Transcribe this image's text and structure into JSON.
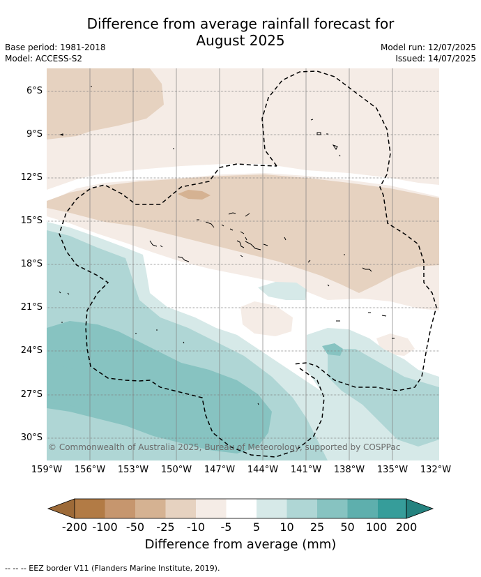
{
  "title_line1": "Difference from average rainfall forecast for",
  "title_line2": "August 2025",
  "base_period": "Base period: 1981-2018",
  "model": "Model: ACCESS-S2",
  "model_run": "Model run: 12/07/2025",
  "issued": "Issued: 14/07/2025",
  "copyright": "© Commonwealth of Australia 2025, Bureau of Meteorology, supported by COSPPac",
  "lat_labels": [
    "6°S",
    "9°S",
    "12°S",
    "15°S",
    "18°S",
    "21°S",
    "24°S",
    "27°S",
    "30°S"
  ],
  "lon_labels": [
    "159°W",
    "156°W",
    "153°W",
    "150°W",
    "147°W",
    "144°W",
    "141°W",
    "138°W",
    "135°W",
    "132°W"
  ],
  "colorbar": {
    "ticks": [
      "-200",
      "-100",
      "-50",
      "-25",
      "-10",
      "-5",
      "5",
      "10",
      "25",
      "50",
      "100",
      "200"
    ],
    "colors": [
      "#9d6a38",
      "#b27b45",
      "#c6966e",
      "#d5b292",
      "#e6d2c0",
      "#f5ece6",
      "#ffffff",
      "#d6e9e8",
      "#afd6d5",
      "#87c3c1",
      "#5eafad",
      "#369d9a",
      "#24827f"
    ],
    "title": "Difference from average (mm)"
  },
  "legend_footer": "--  --  -- EEZ border V11 (Flanders Marine Institute, 2019)."
}
